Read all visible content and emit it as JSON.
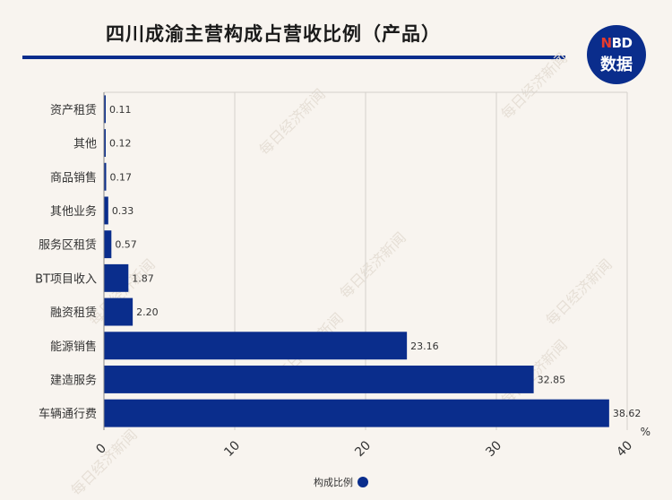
{
  "header": {
    "title": "四川成渝主营构成占营收比例（产品）",
    "logo_top_n": "N",
    "logo_top_rest": "BD",
    "logo_bottom": "数据"
  },
  "chart_data": {
    "type": "bar",
    "orientation": "horizontal",
    "title": "四川成渝主营构成占营收比例（产品）",
    "categories": [
      "资产租赁",
      "其他",
      "商品销售",
      "其他业务",
      "服务区租赁",
      "BT项目收入",
      "融资租赁",
      "能源销售",
      "建造服务",
      "车辆通行费"
    ],
    "series": [
      {
        "name": "构成比例",
        "values": [
          0.11,
          0.12,
          0.17,
          0.33,
          0.57,
          1.87,
          2.2,
          23.16,
          32.85,
          38.62
        ]
      }
    ],
    "value_labels": [
      "0.11",
      "0.12",
      "0.17",
      "0.33",
      "0.57",
      "1.87",
      "2.20",
      "23.16",
      "32.85",
      "38.62"
    ],
    "xlim": [
      0,
      40
    ],
    "x_ticks": [
      0,
      10,
      20,
      30,
      40
    ],
    "x_unit": "%",
    "grid": true,
    "legend_position": "bottom",
    "bar_color": "#0a2d8c"
  },
  "legend": {
    "label": "构成比例"
  },
  "watermark": "每日经济新闻"
}
